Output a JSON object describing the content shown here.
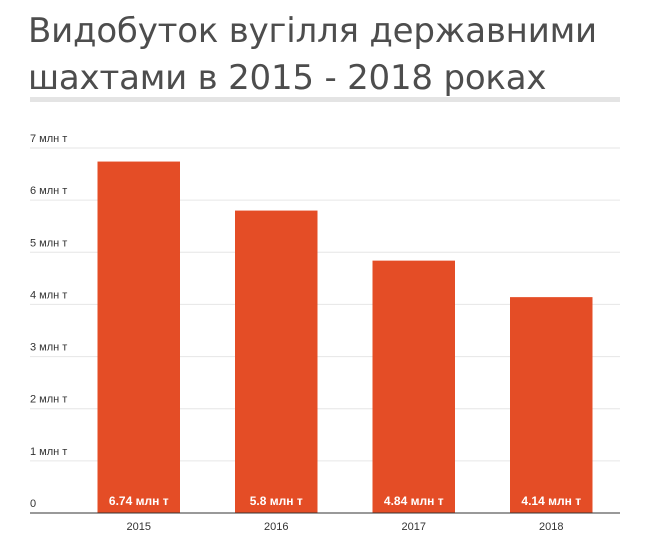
{
  "title": "Видобуток вугілля державними шахтами в 2015 - 2018 роках",
  "colors": {
    "bar": "#e44d26",
    "grid": "#e6e6e6",
    "axis": "#333333",
    "title": "#4d4d4d",
    "label": "#ffffff"
  },
  "chart_data": {
    "type": "bar",
    "title": "Видобуток вугілля державними шахтами в 2015 - 2018 роках",
    "xlabel": "",
    "ylabel": "",
    "categories": [
      "2015",
      "2016",
      "2017",
      "2018"
    ],
    "values": [
      6.74,
      5.8,
      4.84,
      4.14
    ],
    "data_labels": [
      "6.74 млн т",
      "5.8 млн т",
      "4.84 млн т",
      "4.14 млн т"
    ],
    "ylim": [
      0,
      7
    ],
    "yticks": [
      0,
      1,
      2,
      3,
      4,
      5,
      6,
      7
    ],
    "ytick_labels": [
      "0",
      "1 млн т",
      "2 млн т",
      "3 млн т",
      "4 млн т",
      "5 млн т",
      "6 млн т",
      "7 млн т"
    ],
    "grid": true,
    "legend": "none"
  }
}
